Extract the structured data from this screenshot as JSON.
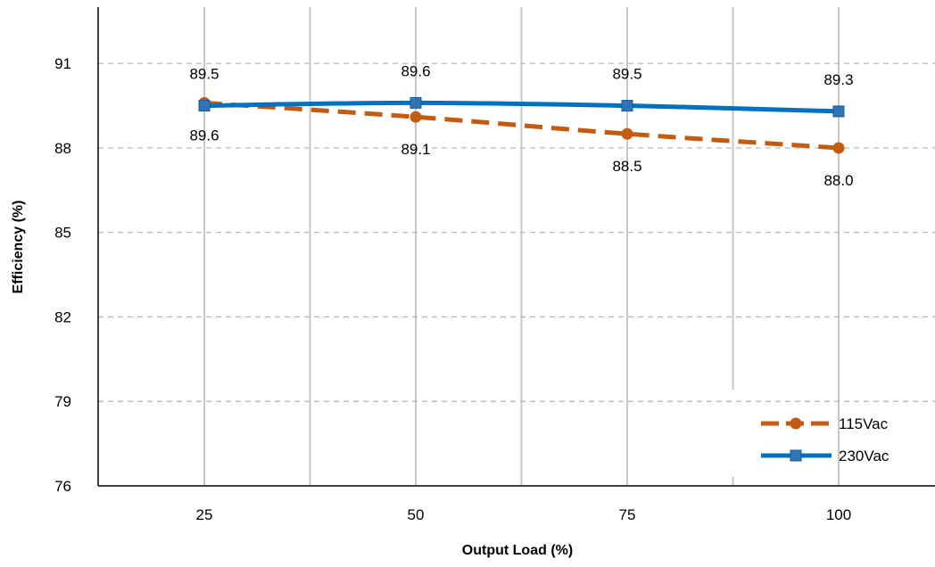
{
  "chart_data": {
    "type": "line",
    "title": "",
    "xlabel": "Output Load (%)",
    "ylabel": "Efficiency (%)",
    "x": [
      25,
      50,
      75,
      100
    ],
    "x_tick_labels": [
      "25",
      "50",
      "75",
      "100"
    ],
    "y_ticks": [
      76,
      79,
      82,
      85,
      88,
      91
    ],
    "y_tick_labels": [
      "76",
      "79",
      "82",
      "85",
      "88",
      "91"
    ],
    "ylim": [
      76,
      93
    ],
    "grid": true,
    "legend_position": "bottom-right",
    "series": [
      {
        "name": "115Vac",
        "values": [
          89.6,
          89.1,
          88.5,
          88.0
        ],
        "labels": [
          "89.6",
          "89.1",
          "88.5",
          "88.0"
        ],
        "label_position": "below",
        "color": "#C55A11",
        "line_style": "dashed",
        "marker": "circle"
      },
      {
        "name": "230Vac",
        "values": [
          89.5,
          89.6,
          89.5,
          89.3
        ],
        "labels": [
          "89.5",
          "89.6",
          "89.5",
          "89.3"
        ],
        "label_position": "above",
        "color": "#0070C0",
        "line_style": "solid",
        "marker": "square"
      }
    ]
  }
}
